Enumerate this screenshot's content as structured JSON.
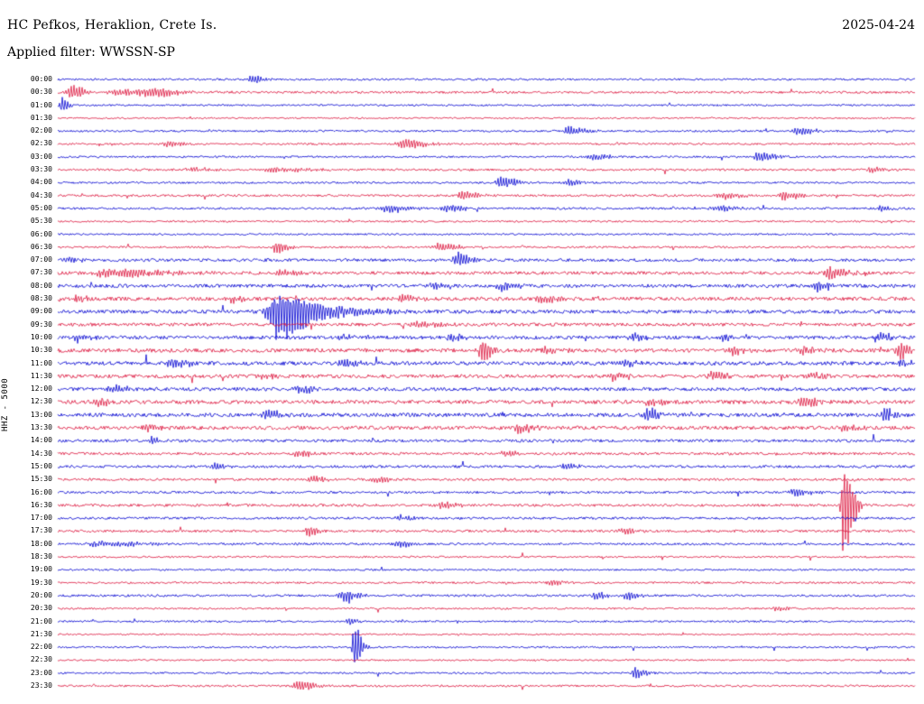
{
  "header": {
    "title": "HC Pefkos, Heraklion, Crete Is.",
    "date": "2025-04-24",
    "filter_label": "Applied filter: WWSSN-SP"
  },
  "axis": {
    "scale_label": "HHZ - 5000",
    "row_interval": "30 min",
    "time_start": "00:00",
    "time_end": "23:30"
  },
  "chart_data": {
    "type": "line",
    "subtype": "helicorder-seismogram",
    "title": "HC Pefkos, Heraklion, Crete Is.",
    "xlabel": "",
    "ylabel": "HHZ - 5000",
    "legend": "none",
    "grid": false,
    "colors": {
      "blue": "#0000d0",
      "red": "#dc143c"
    },
    "rows": [
      {
        "t": "00:00",
        "c": "b",
        "n": 1.0,
        "e": [
          [
            0.225,
            5,
            5
          ]
        ]
      },
      {
        "t": "00:30",
        "c": "r",
        "n": 1.1,
        "e": [
          [
            0.015,
            9,
            5
          ],
          [
            0.075,
            4,
            22
          ],
          [
            0.11,
            3,
            10
          ]
        ]
      },
      {
        "t": "01:00",
        "c": "b",
        "n": 0.9,
        "e": [
          [
            0.004,
            10,
            3
          ]
        ]
      },
      {
        "t": "01:30",
        "c": "r",
        "n": 0.8,
        "e": []
      },
      {
        "t": "02:00",
        "c": "b",
        "n": 1.0,
        "e": [
          [
            0.596,
            5,
            9
          ],
          [
            0.864,
            5,
            7
          ]
        ]
      },
      {
        "t": "02:30",
        "c": "r",
        "n": 1.0,
        "e": [
          [
            0.127,
            4,
            7
          ],
          [
            0.403,
            6,
            10
          ]
        ]
      },
      {
        "t": "03:00",
        "c": "b",
        "n": 1.0,
        "e": [
          [
            0.622,
            4,
            7
          ],
          [
            0.817,
            6,
            7
          ]
        ]
      },
      {
        "t": "03:30",
        "c": "r",
        "n": 1.1,
        "e": [
          [
            0.154,
            3,
            9
          ],
          [
            0.248,
            3,
            16
          ],
          [
            0.948,
            4,
            5
          ]
        ]
      },
      {
        "t": "04:00",
        "c": "b",
        "n": 1.0,
        "e": [
          [
            0.517,
            7,
            7
          ],
          [
            0.596,
            4,
            5
          ]
        ]
      },
      {
        "t": "04:30",
        "c": "r",
        "n": 1.1,
        "e": [
          [
            0.472,
            5,
            7
          ],
          [
            0.775,
            4,
            9
          ],
          [
            0.846,
            6,
            7
          ]
        ]
      },
      {
        "t": "05:00",
        "c": "b",
        "n": 1.1,
        "e": [
          [
            0.385,
            5,
            9
          ],
          [
            0.454,
            5,
            7
          ],
          [
            0.767,
            4,
            9
          ],
          [
            0.959,
            4,
            5
          ]
        ]
      },
      {
        "t": "05:30",
        "c": "r",
        "n": 0.9,
        "e": []
      },
      {
        "t": "06:00",
        "c": "b",
        "n": 0.9,
        "e": []
      },
      {
        "t": "06:30",
        "c": "r",
        "n": 1.0,
        "e": [
          [
            0.254,
            7,
            5
          ],
          [
            0.445,
            6,
            7
          ]
        ]
      },
      {
        "t": "07:00",
        "c": "b",
        "n": 1.5,
        "e": [
          [
            0.012,
            4,
            5
          ],
          [
            0.464,
            9,
            6
          ]
        ]
      },
      {
        "t": "07:30",
        "c": "r",
        "n": 1.6,
        "e": [
          [
            0.06,
            5,
            25
          ],
          [
            0.259,
            5,
            7
          ],
          [
            0.901,
            8,
            7
          ]
        ]
      },
      {
        "t": "08:00",
        "c": "b",
        "n": 1.7,
        "e": [
          [
            0.438,
            4,
            7
          ],
          [
            0.517,
            5,
            7
          ],
          [
            0.885,
            6,
            7
          ]
        ]
      },
      {
        "t": "08:30",
        "c": "r",
        "n": 1.8,
        "e": [
          [
            0.022,
            5,
            4
          ],
          [
            0.201,
            4,
            7
          ],
          [
            0.401,
            5,
            7
          ],
          [
            0.564,
            5,
            7
          ]
        ]
      },
      {
        "t": "09:00",
        "c": "b",
        "n": 1.8,
        "e": [
          [
            0.243,
            8,
            4
          ],
          [
            0.257,
            28,
            10
          ],
          [
            0.285,
            9,
            25
          ]
        ]
      },
      {
        "t": "09:30",
        "c": "r",
        "n": 1.6,
        "e": [
          [
            0.417,
            3,
            10
          ]
        ]
      },
      {
        "t": "10:00",
        "c": "b",
        "n": 1.8,
        "e": [
          [
            0.023,
            5,
            5
          ],
          [
            0.327,
            4,
            6
          ],
          [
            0.459,
            5,
            6
          ],
          [
            0.669,
            6,
            5
          ],
          [
            0.775,
            4,
            6
          ],
          [
            0.959,
            6,
            5
          ]
        ]
      },
      {
        "t": "10:30",
        "c": "r",
        "n": 1.9,
        "e": [
          [
            0.494,
            16,
            4
          ],
          [
            0.569,
            5,
            6
          ],
          [
            0.785,
            5,
            6
          ],
          [
            0.869,
            6,
            6
          ],
          [
            0.98,
            12,
            4
          ]
        ]
      },
      {
        "t": "11:00",
        "c": "b",
        "n": 1.9,
        "e": [
          [
            0.133,
            6,
            7
          ],
          [
            0.333,
            6,
            6
          ],
          [
            0.659,
            5,
            6
          ],
          [
            0.98,
            6,
            5
          ]
        ]
      },
      {
        "t": "11:30",
        "c": "r",
        "n": 1.8,
        "e": [
          [
            0.238,
            4,
            6
          ],
          [
            0.648,
            5,
            6
          ],
          [
            0.764,
            6,
            6
          ],
          [
            0.88,
            4,
            6
          ]
        ]
      },
      {
        "t": "12:00",
        "c": "b",
        "n": 1.8,
        "e": [
          [
            0.064,
            5,
            6
          ],
          [
            0.28,
            5,
            6
          ]
        ]
      },
      {
        "t": "12:30",
        "c": "r",
        "n": 1.9,
        "e": [
          [
            0.043,
            6,
            5
          ],
          [
            0.69,
            4,
            6
          ],
          [
            0.869,
            6,
            6
          ]
        ]
      },
      {
        "t": "13:00",
        "c": "b",
        "n": 1.9,
        "e": [
          [
            0.243,
            6,
            6
          ],
          [
            0.688,
            8,
            5
          ],
          [
            0.964,
            7,
            5
          ]
        ]
      },
      {
        "t": "13:30",
        "c": "r",
        "n": 1.8,
        "e": [
          [
            0.101,
            5,
            6
          ],
          [
            0.538,
            6,
            6
          ],
          [
            0.917,
            5,
            6
          ]
        ]
      },
      {
        "t": "14:00",
        "c": "b",
        "n": 1.4,
        "e": [
          [
            0.109,
            6,
            4
          ]
        ]
      },
      {
        "t": "14:30",
        "c": "r",
        "n": 1.3,
        "e": [
          [
            0.28,
            4,
            6
          ],
          [
            0.522,
            4,
            6
          ]
        ]
      },
      {
        "t": "15:00",
        "c": "b",
        "n": 1.3,
        "e": [
          [
            0.182,
            5,
            5
          ],
          [
            0.591,
            4,
            6
          ]
        ]
      },
      {
        "t": "15:30",
        "c": "r",
        "n": 1.2,
        "e": [
          [
            0.296,
            4,
            6
          ],
          [
            0.369,
            4,
            6
          ]
        ]
      },
      {
        "t": "16:00",
        "c": "b",
        "n": 1.2,
        "e": [
          [
            0.859,
            5,
            7
          ]
        ]
      },
      {
        "t": "16:30",
        "c": "r",
        "n": 1.3,
        "e": [
          [
            0.448,
            5,
            6
          ],
          [
            0.917,
            62,
            4
          ]
        ]
      },
      {
        "t": "17:00",
        "c": "b",
        "n": 1.2,
        "e": [
          [
            0.396,
            4,
            6
          ]
        ]
      },
      {
        "t": "17:30",
        "c": "r",
        "n": 1.2,
        "e": [
          [
            0.291,
            7,
            4
          ],
          [
            0.659,
            4,
            6
          ]
        ]
      },
      {
        "t": "18:00",
        "c": "b",
        "n": 1.1,
        "e": [
          [
            0.05,
            4,
            18
          ],
          [
            0.396,
            4,
            6
          ]
        ]
      },
      {
        "t": "18:30",
        "c": "r",
        "n": 0.9,
        "e": []
      },
      {
        "t": "19:00",
        "c": "b",
        "n": 0.9,
        "e": []
      },
      {
        "t": "19:30",
        "c": "r",
        "n": 1.0,
        "e": [
          [
            0.575,
            3,
            6
          ]
        ]
      },
      {
        "t": "20:00",
        "c": "b",
        "n": 1.1,
        "e": [
          [
            0.331,
            7,
            7
          ],
          [
            0.627,
            5,
            5
          ],
          [
            0.664,
            5,
            5
          ]
        ]
      },
      {
        "t": "20:30",
        "c": "r",
        "n": 0.9,
        "e": [
          [
            0.838,
            3,
            5
          ]
        ]
      },
      {
        "t": "21:00",
        "c": "b",
        "n": 0.9,
        "e": [
          [
            0.338,
            5,
            4
          ]
        ]
      },
      {
        "t": "21:30",
        "c": "r",
        "n": 0.8,
        "e": []
      },
      {
        "t": "22:00",
        "c": "b",
        "n": 0.9,
        "e": [
          [
            0.346,
            30,
            3
          ]
        ]
      },
      {
        "t": "22:30",
        "c": "r",
        "n": 0.8,
        "e": []
      },
      {
        "t": "23:00",
        "c": "b",
        "n": 0.9,
        "e": [
          [
            0.673,
            7,
            5
          ]
        ]
      },
      {
        "t": "23:30",
        "c": "r",
        "n": 1.0,
        "e": [
          [
            0.28,
            6,
            7
          ]
        ]
      }
    ],
    "notes": "48 alternating blue/red 30-minute traces; e = [x_fraction_of_trace, amplitude_px, envelope_width_px] for visible seismic bursts; n = relative background noise level"
  }
}
